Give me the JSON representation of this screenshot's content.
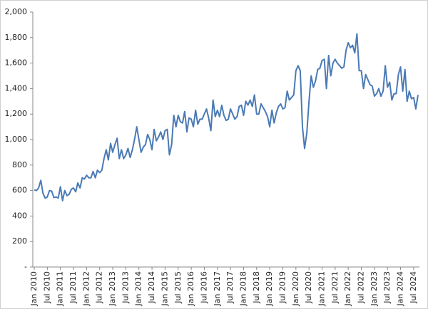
{
  "chart_data": {
    "type": "line",
    "categories": [
      "Jan 2010",
      null,
      null,
      null,
      null,
      null,
      "Jul 2010",
      null,
      null,
      null,
      null,
      null,
      "Jan 2011",
      null,
      null,
      null,
      null,
      null,
      "Jul 2011",
      null,
      null,
      null,
      null,
      null,
      "Jan 2012",
      null,
      null,
      null,
      null,
      null,
      "Jul 2012",
      null,
      null,
      null,
      null,
      null,
      "Jan 2013",
      null,
      null,
      null,
      null,
      null,
      "Jul 2013",
      null,
      null,
      null,
      null,
      null,
      "Jan 2014",
      null,
      null,
      null,
      null,
      null,
      "Jul 2014",
      null,
      null,
      null,
      null,
      null,
      "Jan 2015",
      null,
      null,
      null,
      null,
      null,
      "Jul 2015",
      null,
      null,
      null,
      null,
      null,
      "Jan 2016",
      null,
      null,
      null,
      null,
      null,
      "Jul 2016",
      null,
      null,
      null,
      null,
      null,
      "Jan 2017",
      null,
      null,
      null,
      null,
      null,
      "Jul 2017",
      null,
      null,
      null,
      null,
      null,
      "Jan 2018",
      null,
      null,
      null,
      null,
      null,
      "Jul 2018",
      null,
      null,
      null,
      null,
      null,
      "Jan 2019",
      null,
      null,
      null,
      null,
      null,
      "Jul 2019",
      null,
      null,
      null,
      null,
      null,
      "Jan 2020",
      null,
      null,
      null,
      null,
      null,
      "Jul 2020",
      null,
      null,
      null,
      null,
      null,
      "Jan 2021",
      null,
      null,
      null,
      null,
      null,
      "Jul 2021",
      null,
      null,
      null,
      null,
      null,
      "Jan 2022",
      null,
      null,
      null,
      null,
      null,
      "Jul 2022",
      null,
      null,
      null,
      null,
      null,
      "Jan 2023",
      null,
      null,
      null,
      null,
      null,
      "Jul 2023",
      null,
      null,
      null,
      null,
      null,
      "Jan 2024",
      null,
      null,
      null,
      null,
      null,
      "Jul 2024",
      null,
      null
    ],
    "series": [
      {
        "color": "#4a7ab5",
        "values": [
          605,
          600,
          620,
          680,
          580,
          540,
          550,
          600,
          595,
          545,
          550,
          540,
          630,
          520,
          600,
          560,
          570,
          610,
          620,
          590,
          660,
          620,
          700,
          690,
          720,
          700,
          700,
          750,
          700,
          760,
          740,
          760,
          850,
          920,
          840,
          970,
          900,
          960,
          1010,
          850,
          920,
          850,
          880,
          930,
          860,
          920,
          1000,
          1100,
          1000,
          900,
          940,
          960,
          1040,
          1000,
          920,
          1080,
          990,
          1020,
          1060,
          1000,
          1070,
          1080,
          880,
          960,
          1190,
          1100,
          1190,
          1140,
          1130,
          1220,
          1060,
          1170,
          1160,
          1100,
          1230,
          1120,
          1160,
          1160,
          1200,
          1240,
          1170,
          1070,
          1310,
          1180,
          1230,
          1180,
          1270,
          1190,
          1150,
          1160,
          1240,
          1200,
          1160,
          1180,
          1260,
          1270,
          1190,
          1300,
          1270,
          1310,
          1260,
          1350,
          1200,
          1200,
          1280,
          1250,
          1220,
          1180,
          1100,
          1230,
          1130,
          1210,
          1260,
          1280,
          1240,
          1250,
          1380,
          1310,
          1330,
          1350,
          1540,
          1580,
          1540,
          1100,
          930,
          1050,
          1300,
          1500,
          1410,
          1460,
          1550,
          1560,
          1620,
          1630,
          1400,
          1660,
          1500,
          1600,
          1630,
          1600,
          1580,
          1560,
          1570,
          1700,
          1760,
          1720,
          1740,
          1680,
          1830,
          1540,
          1540,
          1400,
          1510,
          1470,
          1430,
          1420,
          1340,
          1360,
          1400,
          1340,
          1380,
          1580,
          1410,
          1450,
          1310,
          1360,
          1360,
          1510,
          1570,
          1380,
          1550,
          1300,
          1380,
          1320,
          1330,
          1240,
          1350
        ]
      }
    ],
    "ylim": [
      0,
      2000
    ],
    "yticks": [
      {
        "value": 0,
        "label": "-"
      },
      200,
      400,
      600,
      800,
      {
        "value": 1000,
        "label": "1,000"
      },
      {
        "value": 1200,
        "label": "1,200"
      },
      {
        "value": 1400,
        "label": "1,400"
      },
      {
        "value": 1600,
        "label": "1,600"
      },
      {
        "value": 1800,
        "label": "1,800"
      },
      {
        "value": 2000,
        "label": "2,000"
      }
    ]
  }
}
